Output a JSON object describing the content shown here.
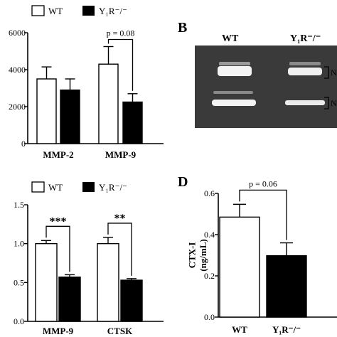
{
  "colors": {
    "wt": "#ffffff",
    "y1r": "#000000",
    "gel_bg": "#3a3a3a",
    "band": "#ffffff"
  },
  "legend": {
    "wt": "WT",
    "y1r": "Y₁R⁻/⁻"
  },
  "panel_letters": {
    "b": "B",
    "d": "D"
  },
  "gel": {
    "lane_labels": [
      "WT",
      "Y₁R⁻/⁻"
    ],
    "side_marks": [
      "N",
      "N"
    ]
  },
  "chart_data": [
    {
      "id": "A",
      "type": "bar",
      "categories": [
        "MMP-2",
        "MMP-9"
      ],
      "series": [
        {
          "name": "WT",
          "values": [
            3500,
            4300
          ],
          "errors": [
            650,
            950
          ]
        },
        {
          "name": "Y₁R⁻/⁻",
          "values": [
            2900,
            2250
          ],
          "errors": [
            600,
            450
          ]
        }
      ],
      "ylim": [
        0,
        6000
      ],
      "yticks": [
        "0",
        "2000",
        "4000",
        "6000"
      ],
      "annotations": [
        {
          "text": "p = 0.08",
          "category": 1
        }
      ]
    },
    {
      "id": "C",
      "type": "bar",
      "categories": [
        "MMP-9",
        "CTSK"
      ],
      "series": [
        {
          "name": "WT",
          "values": [
            1.0,
            1.0
          ],
          "errors": [
            0.04,
            0.08
          ]
        },
        {
          "name": "Y₁R⁻/⁻",
          "values": [
            0.57,
            0.53
          ],
          "errors": [
            0.03,
            0.02
          ]
        }
      ],
      "ylim": [
        0,
        1.5
      ],
      "yticks": [
        "0.0",
        "0.5",
        "1.0",
        "1.5"
      ],
      "annotations": [
        {
          "text": "***",
          "category": 0
        },
        {
          "text": "**",
          "category": 1
        }
      ]
    },
    {
      "id": "D",
      "type": "bar",
      "categories": [
        "WT",
        "Y₁R⁻/⁻"
      ],
      "series": [
        {
          "name": "",
          "values": [
            0.485,
            0.298
          ],
          "errors": [
            0.062,
            0.062
          ]
        }
      ],
      "ylim": [
        0,
        0.6
      ],
      "yticks": [
        "0.0",
        "0.2",
        "0.4",
        "0.6"
      ],
      "ylabel": "CTX-I\n(ng/mL)",
      "annotations": [
        {
          "text": "p = 0.06"
        }
      ]
    }
  ]
}
